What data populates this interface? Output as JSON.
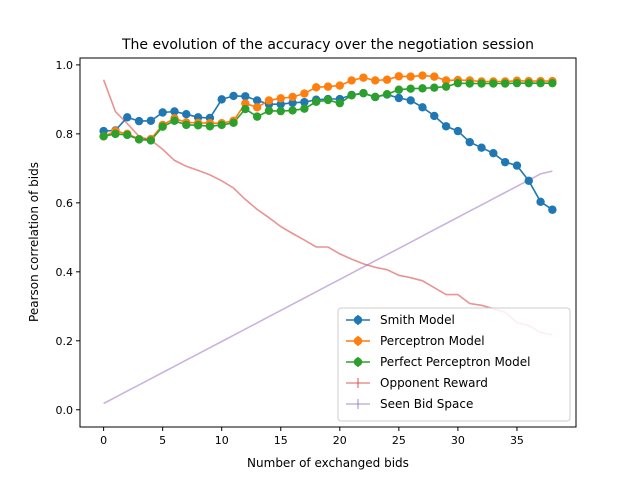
{
  "chart_data": {
    "type": "line",
    "title": "The evolution of the accuracy over the negotiation session",
    "xlabel": "Number of exchanged bids",
    "ylabel": "Pearson correlation of bids",
    "xlim": [
      -2,
      40
    ],
    "ylim": [
      -0.05,
      1.02
    ],
    "xticks": [
      0,
      5,
      10,
      15,
      20,
      25,
      30,
      35
    ],
    "yticks": [
      0.0,
      0.2,
      0.4,
      0.6,
      0.8,
      1.0
    ],
    "ytick_labels": [
      "0.0",
      "0.2",
      "0.4",
      "0.6",
      "0.8",
      "1.0"
    ],
    "grid": false,
    "legend_position": "lower-right",
    "x": [
      0,
      1,
      2,
      3,
      4,
      5,
      6,
      7,
      8,
      9,
      10,
      11,
      12,
      13,
      14,
      15,
      16,
      17,
      18,
      19,
      20,
      21,
      22,
      23,
      24,
      25,
      26,
      27,
      28,
      29,
      30,
      31,
      32,
      33,
      34,
      35,
      36,
      37,
      38
    ],
    "series": [
      {
        "name": "Smith Model",
        "color": "#1f77b4",
        "marker": true,
        "values": [
          0.808,
          0.81,
          0.848,
          0.837,
          0.838,
          0.862,
          0.865,
          0.857,
          0.848,
          0.846,
          0.9,
          0.91,
          0.909,
          0.897,
          0.886,
          0.886,
          0.89,
          0.892,
          0.899,
          0.901,
          0.901,
          0.913,
          0.918,
          0.907,
          0.914,
          0.904,
          0.897,
          0.877,
          0.852,
          0.822,
          0.808,
          0.776,
          0.76,
          0.744,
          0.718,
          0.708,
          0.664,
          0.603,
          0.58
        ]
      },
      {
        "name": "Perceptron Model",
        "color": "#ff7f0e",
        "marker": true,
        "values": [
          0.793,
          0.808,
          0.8,
          0.785,
          0.785,
          0.826,
          0.845,
          0.833,
          0.832,
          0.831,
          0.831,
          0.838,
          0.888,
          0.877,
          0.897,
          0.903,
          0.907,
          0.917,
          0.935,
          0.937,
          0.94,
          0.955,
          0.963,
          0.955,
          0.957,
          0.967,
          0.966,
          0.969,
          0.966,
          0.955,
          0.956,
          0.955,
          0.952,
          0.952,
          0.952,
          0.954,
          0.953,
          0.953,
          0.953
        ]
      },
      {
        "name": "Perfect Perceptron Model",
        "color": "#2ca02c",
        "marker": true,
        "values": [
          0.793,
          0.8,
          0.797,
          0.784,
          0.781,
          0.821,
          0.838,
          0.826,
          0.825,
          0.822,
          0.826,
          0.832,
          0.872,
          0.85,
          0.867,
          0.866,
          0.868,
          0.873,
          0.893,
          0.898,
          0.889,
          0.912,
          0.918,
          0.907,
          0.915,
          0.928,
          0.931,
          0.932,
          0.934,
          0.937,
          0.947,
          0.946,
          0.946,
          0.946,
          0.946,
          0.947,
          0.947,
          0.947,
          0.947
        ]
      },
      {
        "name": "Opponent Reward",
        "color": "#d62728",
        "marker": false,
        "alpha": 0.5,
        "values": [
          0.957,
          0.865,
          0.83,
          0.793,
          0.782,
          0.755,
          0.723,
          0.706,
          0.694,
          0.681,
          0.664,
          0.643,
          0.61,
          0.581,
          0.557,
          0.531,
          0.511,
          0.492,
          0.472,
          0.472,
          0.452,
          0.437,
          0.423,
          0.413,
          0.406,
          0.39,
          0.383,
          0.374,
          0.354,
          0.334,
          0.334,
          0.308,
          0.303,
          0.293,
          0.283,
          0.253,
          0.244,
          0.224,
          0.217
        ]
      },
      {
        "name": "Seen Bid Space",
        "color": "#9467bd",
        "marker": false,
        "alpha": 0.5,
        "values": [
          0.018,
          0.036,
          0.054,
          0.072,
          0.09,
          0.108,
          0.126,
          0.144,
          0.162,
          0.18,
          0.198,
          0.216,
          0.234,
          0.252,
          0.27,
          0.288,
          0.306,
          0.324,
          0.342,
          0.36,
          0.378,
          0.396,
          0.414,
          0.432,
          0.45,
          0.468,
          0.486,
          0.504,
          0.522,
          0.54,
          0.558,
          0.576,
          0.594,
          0.612,
          0.63,
          0.648,
          0.666,
          0.684,
          0.692
        ]
      }
    ]
  }
}
